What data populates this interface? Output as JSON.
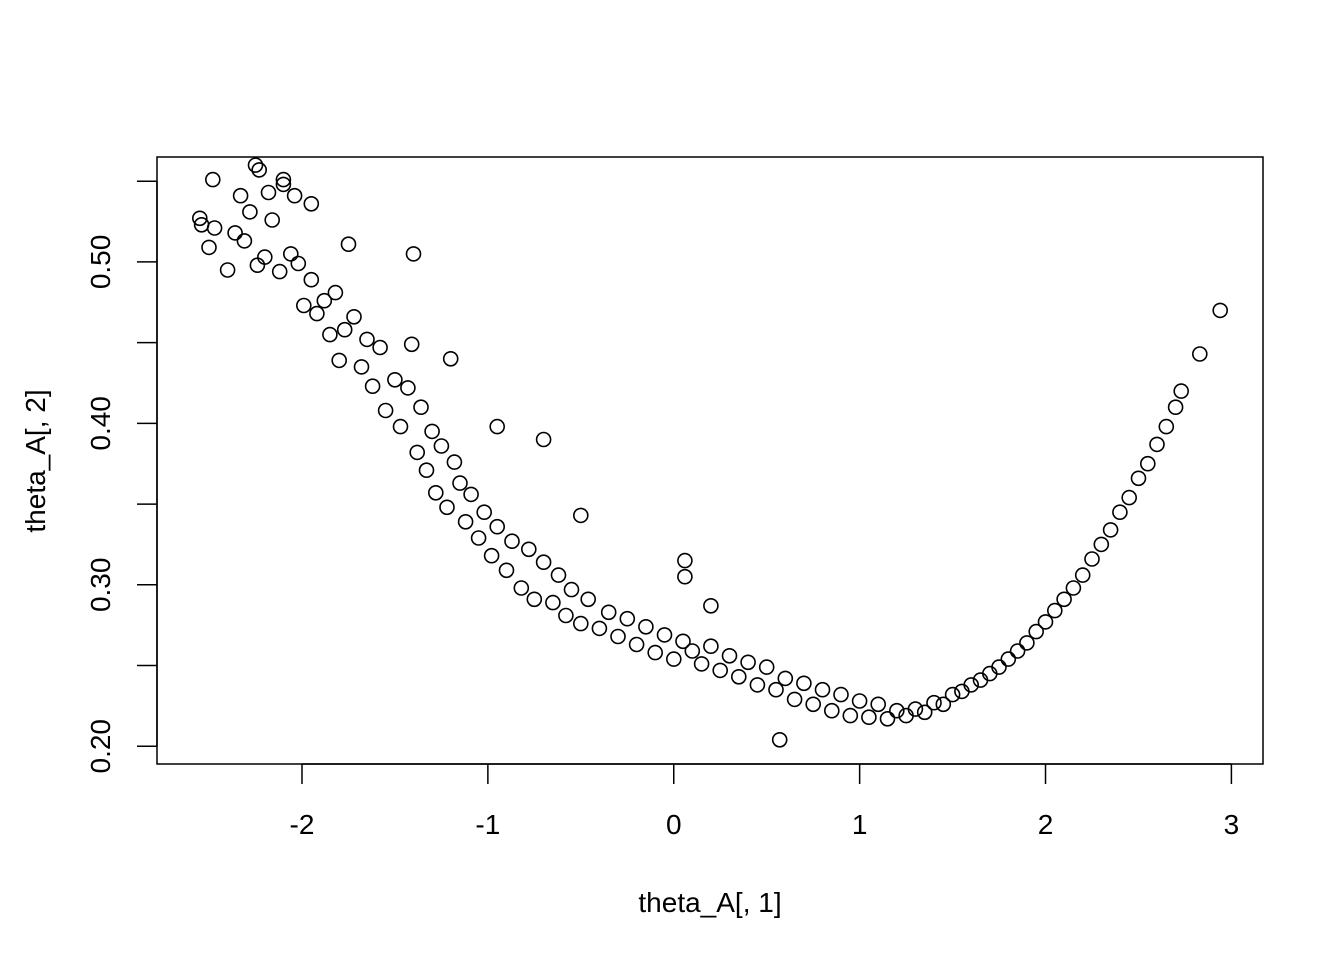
{
  "chart_data": {
    "type": "scatter",
    "title": "",
    "xlabel": "theta_A[, 1]",
    "ylabel": "theta_A[, 2]",
    "xlim": [
      -2.78,
      3.17
    ],
    "ylim": [
      0.189,
      0.565
    ],
    "x_ticks": [
      "-2",
      "-1",
      "0",
      "1",
      "2",
      "3"
    ],
    "y_ticks": [
      "0.20",
      "",
      "0.30",
      "",
      "0.40",
      "",
      "0.50",
      ""
    ],
    "y_tick_values": [
      0.2,
      0.25,
      0.3,
      0.35,
      0.4,
      0.45,
      0.5,
      0.55
    ],
    "x_tick_values": [
      -2,
      -1,
      0,
      1,
      2,
      3
    ],
    "grid": false,
    "legend": "none",
    "marker": "open-circle",
    "marker_color": "#000000",
    "series": [
      {
        "x": [
          -2.55,
          -2.54,
          -2.5,
          -2.48,
          -2.47,
          -2.4,
          -2.36,
          -2.33,
          -2.31,
          -2.28,
          -2.24,
          -2.23,
          -2.2,
          -2.18,
          -2.16,
          -2.12,
          -2.1,
          -2.06,
          -2.04,
          -2.02,
          -1.99,
          -1.95,
          -1.92,
          -1.88,
          -1.85,
          -1.82,
          -1.8,
          -1.77,
          -1.75,
          -1.72,
          -1.68,
          -1.65,
          -1.62,
          -1.58,
          -1.55,
          -1.5,
          -1.47,
          -1.43,
          -1.41,
          -1.38,
          -1.36,
          -1.33,
          -1.3,
          -1.28,
          -1.25,
          -1.22,
          -1.18,
          -1.15,
          -1.12,
          -1.09,
          -1.05,
          -1.02,
          -0.98,
          -0.95,
          -0.9,
          -0.87,
          -0.82,
          -0.78,
          -0.75,
          -0.7,
          -0.65,
          -0.62,
          -0.58,
          -0.55,
          -0.5,
          -0.46,
          -0.4,
          -0.35,
          -0.3,
          -0.25,
          -0.2,
          -0.15,
          -0.1,
          -0.05,
          0.0,
          0.05,
          0.06,
          0.1,
          0.15,
          0.2,
          0.25,
          0.3,
          0.35,
          0.4,
          0.45,
          0.5,
          0.55,
          0.57,
          0.6,
          0.65,
          0.7,
          0.75,
          0.8,
          0.85,
          0.9,
          0.95,
          1.0,
          1.05,
          1.1,
          1.15,
          1.2,
          1.25,
          1.3,
          1.35,
          1.4,
          1.45,
          1.5,
          1.55,
          1.6,
          1.65,
          1.7,
          1.75,
          1.8,
          1.85,
          1.9,
          1.95,
          2.0,
          2.05,
          2.1,
          2.15,
          2.2,
          2.25,
          2.3,
          2.35,
          2.4,
          2.45,
          2.5,
          2.55,
          2.6,
          2.65,
          2.7,
          2.73,
          2.83,
          2.94,
          -2.25,
          -2.1,
          -1.95,
          -1.4,
          -1.2,
          -0.7,
          0.06,
          0.2,
          -0.5,
          -0.95
        ],
        "y": [
          0.527,
          0.523,
          0.509,
          0.551,
          0.521,
          0.495,
          0.518,
          0.541,
          0.513,
          0.531,
          0.498,
          0.557,
          0.503,
          0.543,
          0.526,
          0.494,
          0.548,
          0.505,
          0.541,
          0.499,
          0.473,
          0.489,
          0.468,
          0.476,
          0.455,
          0.481,
          0.439,
          0.458,
          0.511,
          0.466,
          0.435,
          0.452,
          0.423,
          0.447,
          0.408,
          0.427,
          0.398,
          0.422,
          0.449,
          0.382,
          0.41,
          0.371,
          0.395,
          0.357,
          0.386,
          0.348,
          0.376,
          0.363,
          0.339,
          0.356,
          0.329,
          0.345,
          0.318,
          0.336,
          0.309,
          0.327,
          0.298,
          0.322,
          0.291,
          0.314,
          0.289,
          0.306,
          0.281,
          0.297,
          0.276,
          0.291,
          0.273,
          0.283,
          0.268,
          0.279,
          0.263,
          0.274,
          0.258,
          0.269,
          0.254,
          0.265,
          0.315,
          0.259,
          0.251,
          0.262,
          0.247,
          0.256,
          0.243,
          0.252,
          0.238,
          0.249,
          0.235,
          0.204,
          0.242,
          0.229,
          0.239,
          0.226,
          0.235,
          0.222,
          0.232,
          0.219,
          0.228,
          0.218,
          0.226,
          0.217,
          0.222,
          0.219,
          0.223,
          0.221,
          0.227,
          0.226,
          0.232,
          0.234,
          0.238,
          0.241,
          0.245,
          0.249,
          0.254,
          0.259,
          0.264,
          0.271,
          0.277,
          0.284,
          0.291,
          0.298,
          0.306,
          0.316,
          0.325,
          0.334,
          0.345,
          0.354,
          0.366,
          0.375,
          0.387,
          0.398,
          0.41,
          0.42,
          0.443,
          0.47,
          0.56,
          0.551,
          0.536,
          0.505,
          0.44,
          0.39,
          0.305,
          0.287,
          0.343,
          0.398
        ]
      }
    ]
  }
}
